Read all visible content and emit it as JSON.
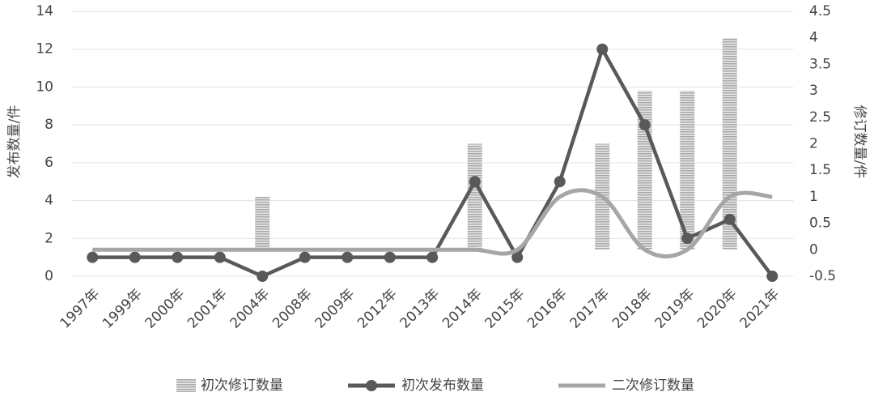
{
  "chart_data": {
    "type": "combo",
    "y_label": "发布数量/件",
    "y2_label": "修订数量/件",
    "categories": [
      "1997年",
      "1999年",
      "2000年",
      "2001年",
      "2004年",
      "2008年",
      "2009年",
      "2012年",
      "2013年",
      "2014年",
      "2015年",
      "2016年",
      "2017年",
      "2018年",
      "2019年",
      "2020年",
      "2021年"
    ],
    "series": [
      {
        "name": "初次修订数量",
        "type": "bar",
        "axis": "y2",
        "color": "#b8b8b8",
        "values": [
          0,
          0,
          0,
          0,
          1,
          0,
          0,
          0,
          0,
          2,
          0,
          0,
          2,
          3,
          3,
          4,
          0
        ]
      },
      {
        "name": "初次发布数量",
        "type": "line",
        "marker": true,
        "color": "#595959",
        "values": [
          1,
          1,
          1,
          1,
          0,
          1,
          1,
          1,
          1,
          5,
          1,
          5,
          12,
          8,
          2,
          3,
          0
        ]
      },
      {
        "name": "二次修订数量",
        "type": "line",
        "smooth": true,
        "axis": "y2",
        "color": "#a6a6a6",
        "values": [
          0,
          0,
          0,
          0,
          0,
          0,
          0,
          0,
          0,
          0,
          0,
          1,
          1,
          0,
          0,
          1,
          1
        ]
      }
    ],
    "ylim": [
      0,
      14
    ],
    "yticks": [
      0,
      2,
      4,
      6,
      8,
      10,
      12,
      14
    ],
    "y2lim": [
      -0.5,
      4.5
    ],
    "y2ticks": [
      -0.5,
      0,
      0.5,
      1,
      1.5,
      2,
      2.5,
      3,
      3.5,
      4,
      4.5
    ],
    "grid": true
  }
}
